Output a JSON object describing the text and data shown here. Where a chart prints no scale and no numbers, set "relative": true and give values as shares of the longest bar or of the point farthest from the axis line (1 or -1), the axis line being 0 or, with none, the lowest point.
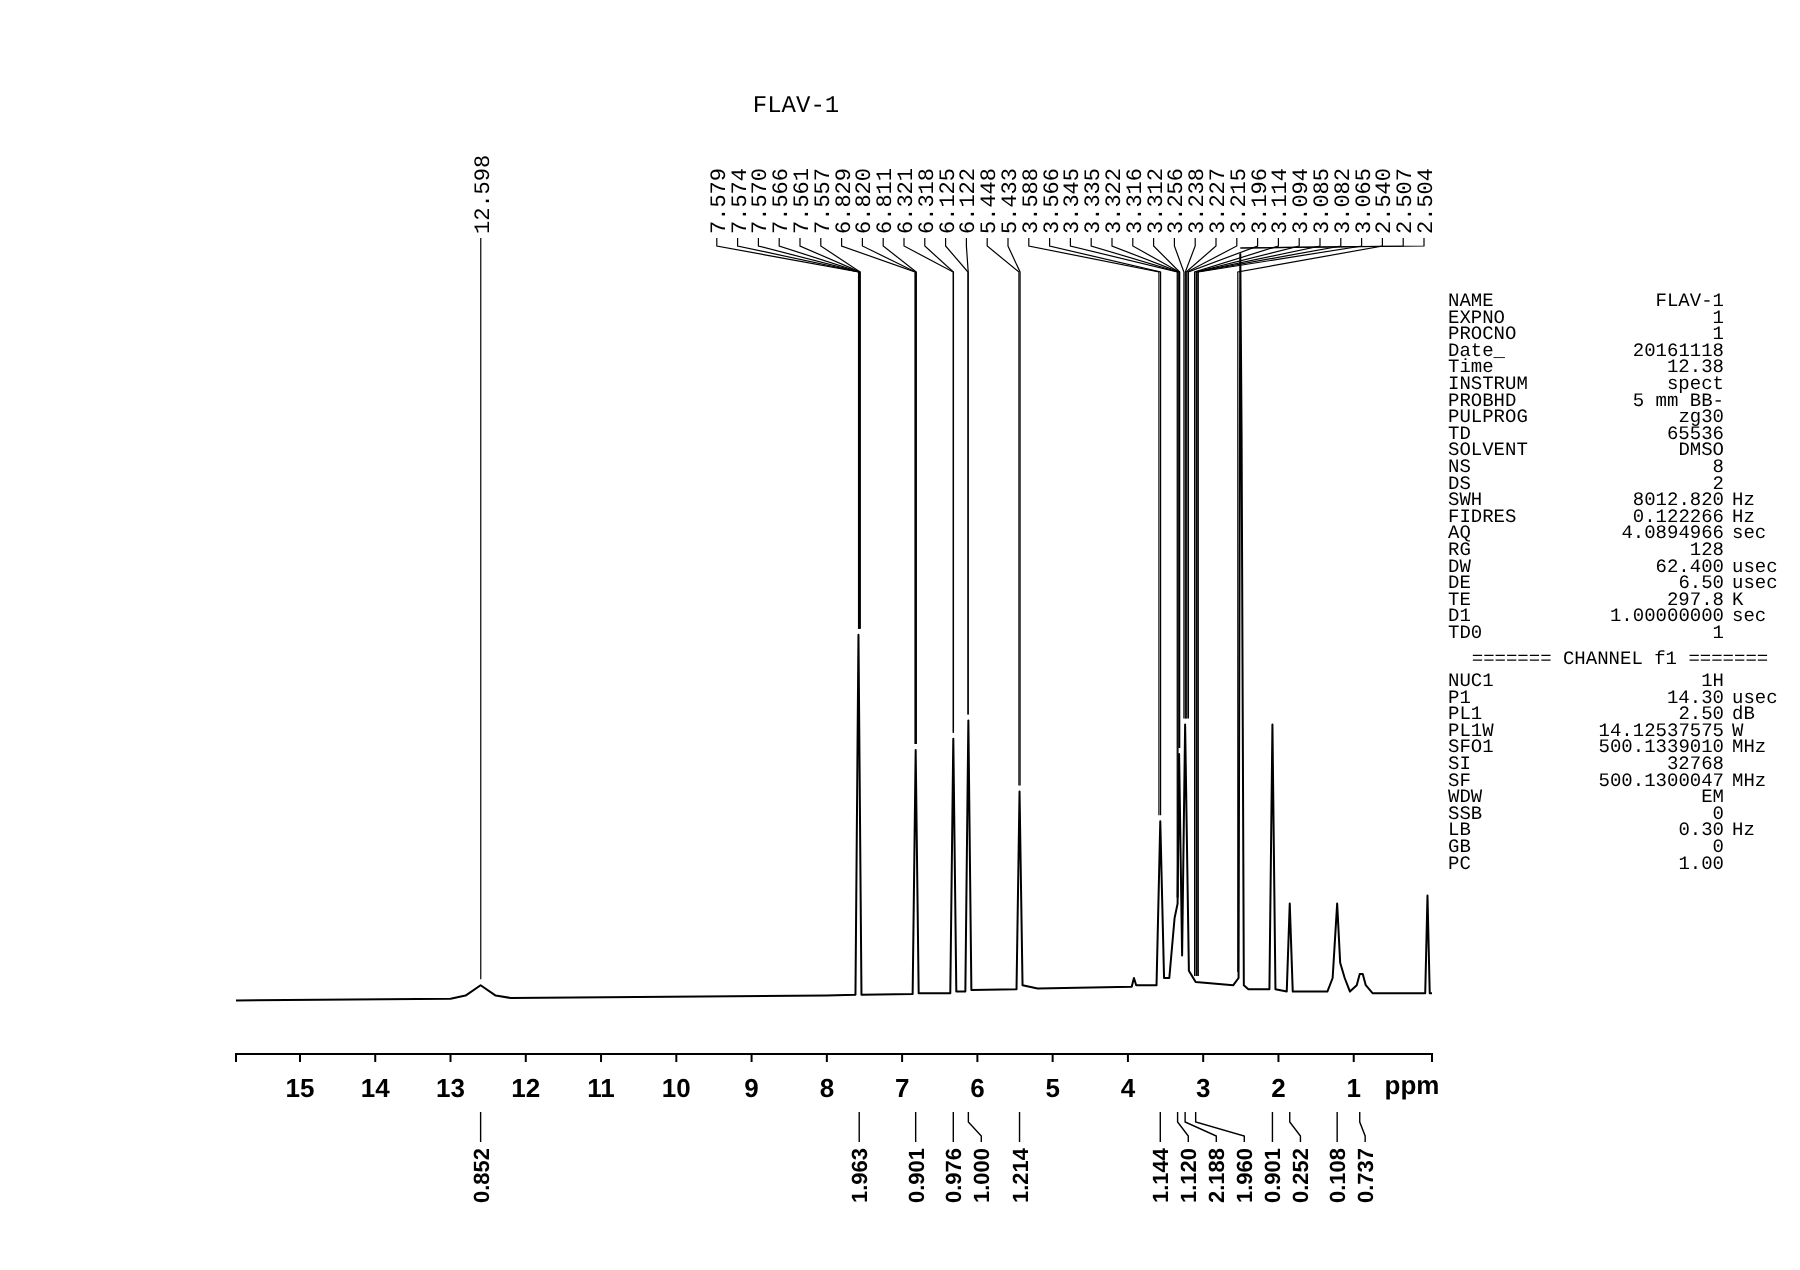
{
  "chart_data": [
    {
      "type": "line",
      "title": "FLAV-1",
      "xlabel": "ppm",
      "relative": true,
      "xlim": [
        15.85,
        -0.04
      ],
      "xticks": [
        15,
        14,
        13,
        12,
        11,
        10,
        9,
        8,
        7,
        6,
        5,
        4,
        3,
        2,
        1
      ],
      "tick_labels": "x",
      "grid": false,
      "marker": "none",
      "line_style": "solid",
      "x": [
        15.85,
        13.0,
        12.8,
        12.6,
        12.4,
        12.2,
        8.0,
        7.62,
        7.58,
        7.54,
        6.86,
        6.82,
        6.78,
        6.36,
        6.32,
        6.28,
        6.16,
        6.12,
        6.08,
        5.48,
        5.44,
        5.4,
        5.2,
        3.95,
        3.92,
        3.89,
        3.62,
        3.57,
        3.52,
        3.45,
        3.38,
        3.34,
        3.32,
        3.28,
        3.24,
        3.19,
        3.1,
        2.6,
        2.53,
        2.507,
        2.49,
        2.46,
        2.4,
        2.12,
        2.08,
        2.04,
        1.89,
        1.85,
        1.81,
        1.35,
        1.28,
        1.22,
        1.18,
        1.12,
        1.05,
        0.96,
        0.92,
        0.88,
        0.84,
        0.75,
        0.05,
        0.02,
        -0.01,
        -0.04
      ],
      "series": [
        {
          "color": "#000000",
          "values": [
            0.067,
            0.069,
            0.073,
            0.086,
            0.073,
            0.07,
            0.073,
            0.074,
            0.524,
            0.074,
            0.075,
            0.38,
            0.076,
            0.076,
            0.394,
            0.078,
            0.078,
            0.417,
            0.08,
            0.081,
            0.328,
            0.086,
            0.082,
            0.084,
            0.095,
            0.086,
            0.086,
            0.291,
            0.095,
            0.095,
            0.17,
            0.188,
            0.375,
            0.123,
            0.412,
            0.104,
            0.09,
            0.086,
            0.095,
            1.0,
            0.776,
            0.086,
            0.081,
            0.081,
            0.412,
            0.081,
            0.078,
            0.188,
            0.078,
            0.078,
            0.095,
            0.188,
            0.114,
            0.095,
            0.078,
            0.086,
            0.1,
            0.1,
            0.086,
            0.076,
            0.076,
            0.198,
            0.076,
            0.076
          ]
        }
      ],
      "annotations": [
        {
          "text": "12.598",
          "x": 12.598,
          "y": 0.086
        },
        {
          "text": "7.579",
          "x": 7.579,
          "y": 0.524
        },
        {
          "text": "7.574",
          "x": 7.574,
          "y": 0.524
        },
        {
          "text": "7.570",
          "x": 7.57,
          "y": 0.524
        },
        {
          "text": "7.566",
          "x": 7.566,
          "y": 0.524
        },
        {
          "text": "7.561",
          "x": 7.561,
          "y": 0.524
        },
        {
          "text": "7.557",
          "x": 7.557,
          "y": 0.524
        },
        {
          "text": "6.829",
          "x": 6.829,
          "y": 0.38
        },
        {
          "text": "6.820",
          "x": 6.82,
          "y": 0.38
        },
        {
          "text": "6.811",
          "x": 6.811,
          "y": 0.38
        },
        {
          "text": "6.321",
          "x": 6.321,
          "y": 0.394
        },
        {
          "text": "6.318",
          "x": 6.318,
          "y": 0.394
        },
        {
          "text": "6.125",
          "x": 6.125,
          "y": 0.417
        },
        {
          "text": "6.122",
          "x": 6.122,
          "y": 0.417
        },
        {
          "text": "5.448",
          "x": 5.448,
          "y": 0.328
        },
        {
          "text": "5.433",
          "x": 5.433,
          "y": 0.328
        },
        {
          "text": "3.588",
          "x": 3.588,
          "y": 0.291
        },
        {
          "text": "3.566",
          "x": 3.566,
          "y": 0.291
        },
        {
          "text": "3.345",
          "x": 3.345,
          "y": 0.188
        },
        {
          "text": "3.335",
          "x": 3.335,
          "y": 0.188
        },
        {
          "text": "3.322",
          "x": 3.322,
          "y": 0.375
        },
        {
          "text": "3.316",
          "x": 3.316,
          "y": 0.375
        },
        {
          "text": "3.312",
          "x": 3.312,
          "y": 0.375
        },
        {
          "text": "3.256",
          "x": 3.256,
          "y": 0.412
        },
        {
          "text": "3.238",
          "x": 3.238,
          "y": 0.412
        },
        {
          "text": "3.227",
          "x": 3.227,
          "y": 0.412
        },
        {
          "text": "3.215",
          "x": 3.215,
          "y": 0.412
        },
        {
          "text": "3.196",
          "x": 3.196,
          "y": 0.412
        },
        {
          "text": "3.114",
          "x": 3.114,
          "y": 0.09
        },
        {
          "text": "3.094",
          "x": 3.094,
          "y": 0.09
        },
        {
          "text": "3.085",
          "x": 3.085,
          "y": 0.09
        },
        {
          "text": "3.082",
          "x": 3.082,
          "y": 0.09
        },
        {
          "text": "3.065",
          "x": 3.065,
          "y": 0.09
        },
        {
          "text": "2.540",
          "x": 2.54,
          "y": 0.095
        },
        {
          "text": "2.507",
          "x": 2.507,
          "y": 1.0
        },
        {
          "text": "2.504",
          "x": 2.504,
          "y": 1.0
        },
        {
          "text": "0.852",
          "x": 12.6
        },
        {
          "text": "1.963",
          "x": 7.57
        },
        {
          "text": "0.901",
          "x": 6.82
        },
        {
          "text": "0.976",
          "x": 6.32
        },
        {
          "text": "1.000",
          "x": 6.12
        },
        {
          "text": "1.214",
          "x": 5.44
        },
        {
          "text": "1.144",
          "x": 3.57
        },
        {
          "text": "1.120",
          "x": 3.34
        },
        {
          "text": "2.188",
          "x": 3.24
        },
        {
          "text": "1.960",
          "x": 3.1
        },
        {
          "text": "0.901",
          "x": 2.08
        },
        {
          "text": "0.252",
          "x": 1.85
        },
        {
          "text": "0.108",
          "x": 1.22
        },
        {
          "text": "0.737",
          "x": 0.92
        }
      ]
    },
    {
      "type": "other",
      "annotations": [
        "NAME FLAV-1",
        "EXPNO 1",
        "PROCNO 1",
        "Date_ 20161118",
        "Time 12.38",
        "INSTRUM spect",
        "PROBHD 5 mm BB-",
        "PULPROG zg30",
        "TD 65536",
        "SOLVENT DMSO",
        "NS 8",
        "DS 2",
        "SWH 8012.820 Hz",
        "FIDRES 0.122266 Hz",
        "AQ 4.0894966 sec",
        "RG 128",
        "DW 62.400 usec",
        "DE 6.50 usec",
        "TE 297.8 K",
        "D1 1.00000000 sec",
        "TD0 1"
      ]
    },
    {
      "type": "other",
      "title": "======= CHANNEL f1 =======",
      "annotations": [
        "NUC1 1H",
        "P1 14.30 usec",
        "PL1 2.50 dB",
        "PL1W 14.12537575 W",
        "SFO1 500.1339010 MHz",
        "SI 32768",
        "SF 500.1300047 MHz",
        "WDW EM",
        "SSB 0",
        "LB 0.30 Hz",
        "GB 0",
        "PC 1.00"
      ]
    }
  ]
}
